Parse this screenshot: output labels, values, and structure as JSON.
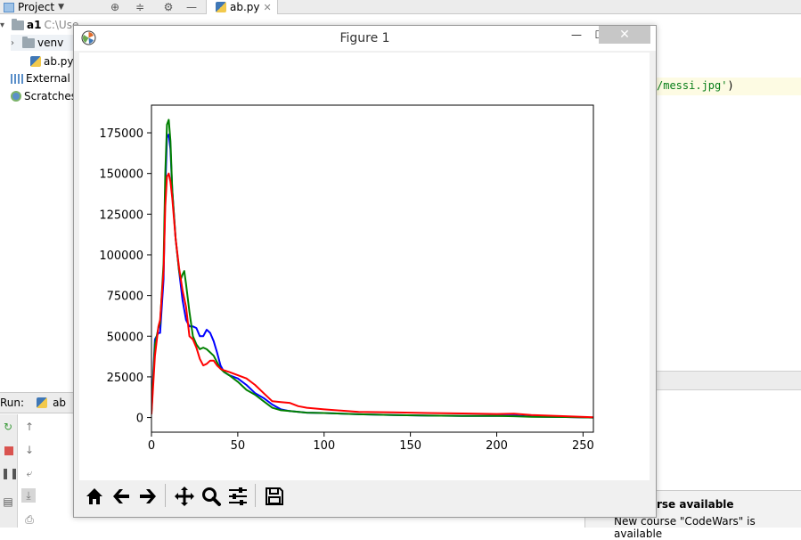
{
  "ide": {
    "project_tab_label": "Project",
    "editor_tab_label": "ab.py",
    "editor_tab_close": "✕",
    "tree": {
      "root_name": "a1",
      "root_path": "C:\\Use",
      "venv": "venv",
      "file": "ab.py",
      "external_libraries": "External L",
      "scratches": "Scratches"
    },
    "code_line": {
      "string_part": "/messi.jpg'",
      "suffix": ")"
    },
    "run": {
      "label": "Run:",
      "config": "ab"
    },
    "notification": {
      "title": "rse available",
      "body": "New course \"CodeWars\" is available"
    }
  },
  "figure_window": {
    "title": "Figure 1",
    "minimize": "—",
    "maximize": "☐",
    "close": "✕"
  },
  "toolbar": {
    "icons": [
      "home-icon",
      "back-icon",
      "forward-icon",
      "pan-icon",
      "zoom-icon",
      "configure-subplots-icon",
      "save-icon"
    ]
  },
  "chart_data": {
    "type": "line",
    "xlabel": "",
    "ylabel": "",
    "title": "",
    "xlim": [
      0,
      256
    ],
    "ylim": [
      -9000,
      192000
    ],
    "x_ticks": [
      0,
      50,
      100,
      150,
      200,
      250
    ],
    "y_ticks": [
      0,
      25000,
      50000,
      75000,
      100000,
      125000,
      150000,
      175000
    ],
    "x_tick_labels": [
      "0",
      "50",
      "100",
      "150",
      "200",
      "250"
    ],
    "y_tick_labels": [
      "0",
      "25000",
      "50000",
      "75000",
      "100000",
      "125000",
      "150000",
      "175000"
    ],
    "grid": false,
    "legend": "none",
    "series": [
      {
        "color": "#0000ff",
        "points": [
          [
            0,
            5000
          ],
          [
            2,
            48000
          ],
          [
            4,
            52000
          ],
          [
            5,
            52000
          ],
          [
            7,
            85000
          ],
          [
            8,
            140000
          ],
          [
            9,
            172000
          ],
          [
            10,
            174000
          ],
          [
            11,
            165000
          ],
          [
            12,
            140000
          ],
          [
            14,
            110000
          ],
          [
            16,
            90000
          ],
          [
            18,
            72000
          ],
          [
            20,
            60000
          ],
          [
            22,
            56000
          ],
          [
            24,
            56000
          ],
          [
            26,
            55000
          ],
          [
            28,
            50000
          ],
          [
            30,
            50000
          ],
          [
            32,
            54000
          ],
          [
            34,
            52000
          ],
          [
            36,
            47000
          ],
          [
            38,
            40000
          ],
          [
            40,
            32000
          ],
          [
            42,
            28000
          ],
          [
            45,
            26000
          ],
          [
            50,
            24000
          ],
          [
            55,
            20000
          ],
          [
            60,
            15000
          ],
          [
            65,
            12000
          ],
          [
            70,
            8000
          ],
          [
            75,
            5000
          ],
          [
            80,
            4000
          ],
          [
            90,
            3000
          ],
          [
            100,
            2800
          ],
          [
            120,
            2000
          ],
          [
            140,
            1500
          ],
          [
            160,
            1200
          ],
          [
            180,
            1000
          ],
          [
            200,
            1000
          ],
          [
            210,
            1200
          ],
          [
            220,
            600
          ],
          [
            240,
            300
          ],
          [
            256,
            0
          ]
        ]
      },
      {
        "color": "#008000",
        "points": [
          [
            0,
            3000
          ],
          [
            2,
            45000
          ],
          [
            4,
            55000
          ],
          [
            5,
            58000
          ],
          [
            7,
            95000
          ],
          [
            8,
            150000
          ],
          [
            9,
            180000
          ],
          [
            10,
            183000
          ],
          [
            11,
            170000
          ],
          [
            12,
            140000
          ],
          [
            14,
            110000
          ],
          [
            16,
            90000
          ],
          [
            17,
            85000
          ],
          [
            18,
            88000
          ],
          [
            19,
            90000
          ],
          [
            20,
            82000
          ],
          [
            22,
            65000
          ],
          [
            24,
            50000
          ],
          [
            26,
            45000
          ],
          [
            28,
            42000
          ],
          [
            30,
            43000
          ],
          [
            32,
            42000
          ],
          [
            34,
            40000
          ],
          [
            36,
            38000
          ],
          [
            38,
            34000
          ],
          [
            40,
            30000
          ],
          [
            42,
            28000
          ],
          [
            45,
            26000
          ],
          [
            50,
            22000
          ],
          [
            55,
            17000
          ],
          [
            60,
            14000
          ],
          [
            65,
            10000
          ],
          [
            70,
            6000
          ],
          [
            75,
            4500
          ],
          [
            80,
            4000
          ],
          [
            90,
            3000
          ],
          [
            100,
            2800
          ],
          [
            120,
            2000
          ],
          [
            140,
            1500
          ],
          [
            160,
            1200
          ],
          [
            180,
            1000
          ],
          [
            200,
            1000
          ],
          [
            210,
            800
          ],
          [
            220,
            500
          ],
          [
            240,
            300
          ],
          [
            256,
            0
          ]
        ]
      },
      {
        "color": "#ff0000",
        "points": [
          [
            0,
            2000
          ],
          [
            2,
            38000
          ],
          [
            4,
            56000
          ],
          [
            5,
            60000
          ],
          [
            7,
            90000
          ],
          [
            8,
            130000
          ],
          [
            9,
            148000
          ],
          [
            10,
            150000
          ],
          [
            11,
            145000
          ],
          [
            12,
            135000
          ],
          [
            14,
            110000
          ],
          [
            16,
            92000
          ],
          [
            18,
            78000
          ],
          [
            20,
            68000
          ],
          [
            22,
            50000
          ],
          [
            24,
            48000
          ],
          [
            26,
            43000
          ],
          [
            28,
            36000
          ],
          [
            30,
            32000
          ],
          [
            32,
            33000
          ],
          [
            34,
            35000
          ],
          [
            36,
            35000
          ],
          [
            38,
            32000
          ],
          [
            40,
            30000
          ],
          [
            42,
            29000
          ],
          [
            45,
            28000
          ],
          [
            50,
            26000
          ],
          [
            55,
            24000
          ],
          [
            60,
            20000
          ],
          [
            65,
            15000
          ],
          [
            70,
            10000
          ],
          [
            75,
            9500
          ],
          [
            80,
            9000
          ],
          [
            85,
            7000
          ],
          [
            90,
            6000
          ],
          [
            100,
            5000
          ],
          [
            120,
            3500
          ],
          [
            140,
            3200
          ],
          [
            160,
            2800
          ],
          [
            180,
            2500
          ],
          [
            200,
            2200
          ],
          [
            210,
            2400
          ],
          [
            220,
            1500
          ],
          [
            240,
            800
          ],
          [
            256,
            200
          ]
        ]
      }
    ]
  }
}
